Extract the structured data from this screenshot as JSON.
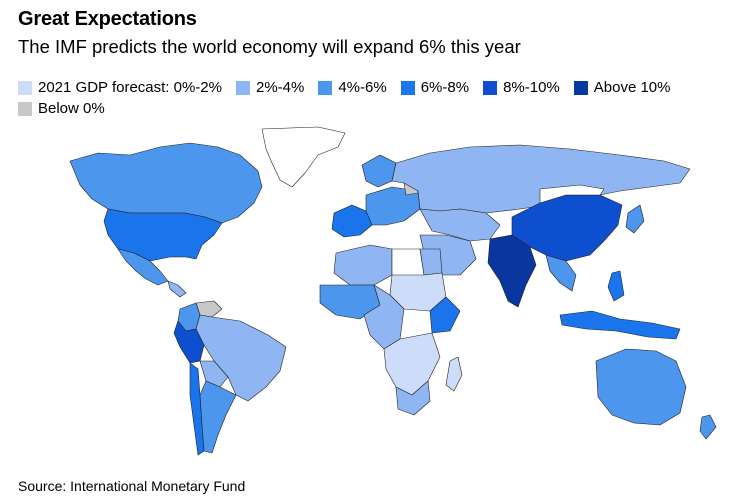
{
  "header": {
    "title": "Great Expectations",
    "subtitle": "The IMF predicts the world economy will expand 6% this year"
  },
  "legend": {
    "items": [
      {
        "label": "2021 GDP forecast: 0%-2%",
        "color": "#cddcf9"
      },
      {
        "label": "2%-4%",
        "color": "#8fb6f2"
      },
      {
        "label": "4%-6%",
        "color": "#4c96ee"
      },
      {
        "label": "6%-8%",
        "color": "#1a74ec"
      },
      {
        "label": "8%-10%",
        "color": "#0e4fd0"
      },
      {
        "label": "Above 10%",
        "color": "#0a36a0"
      },
      {
        "label": "Below 0%",
        "color": "#c8c8c8"
      }
    ]
  },
  "map": {
    "no_data_color": "#ffffff",
    "regions": [
      {
        "name": "Canada",
        "bucket": "4%-6%",
        "color": "#4c96ee"
      },
      {
        "name": "United States",
        "bucket": "6%-8%",
        "color": "#1a74ec"
      },
      {
        "name": "Mexico",
        "bucket": "4%-6%",
        "color": "#4c96ee"
      },
      {
        "name": "Greenland",
        "bucket": "no data",
        "color": "#ffffff"
      },
      {
        "name": "Brazil",
        "bucket": "2%-4%",
        "color": "#8fb6f2"
      },
      {
        "name": "Peru",
        "bucket": "8%-10%",
        "color": "#0e4fd0"
      },
      {
        "name": "Argentina",
        "bucket": "4%-6%",
        "color": "#4c96ee"
      },
      {
        "name": "Venezuela",
        "bucket": "below 0%",
        "color": "#c8c8c8"
      },
      {
        "name": "Russia",
        "bucket": "2%-4%",
        "color": "#8fb6f2"
      },
      {
        "name": "China",
        "bucket": "8%-10%",
        "color": "#0e4fd0"
      },
      {
        "name": "India",
        "bucket": "above 10%",
        "color": "#0a36a0"
      },
      {
        "name": "Australia",
        "bucket": "4%-6%",
        "color": "#4c96ee"
      },
      {
        "name": "Algeria",
        "bucket": "2%-4%",
        "color": "#8fb6f2"
      },
      {
        "name": "Libya",
        "bucket": "no data",
        "color": "#ffffff"
      },
      {
        "name": "Egypt",
        "bucket": "2%-4%",
        "color": "#8fb6f2"
      },
      {
        "name": "Sudan",
        "bucket": "0%-2%",
        "color": "#cddcf9"
      },
      {
        "name": "Kenya",
        "bucket": "6%-8%",
        "color": "#1a74ec"
      },
      {
        "name": "South Africa",
        "bucket": "2%-4%",
        "color": "#8fb6f2"
      },
      {
        "name": "Mongolia",
        "bucket": "no data",
        "color": "#ffffff"
      }
    ]
  },
  "footer": {
    "source": "Source: International Monetary Fund"
  }
}
